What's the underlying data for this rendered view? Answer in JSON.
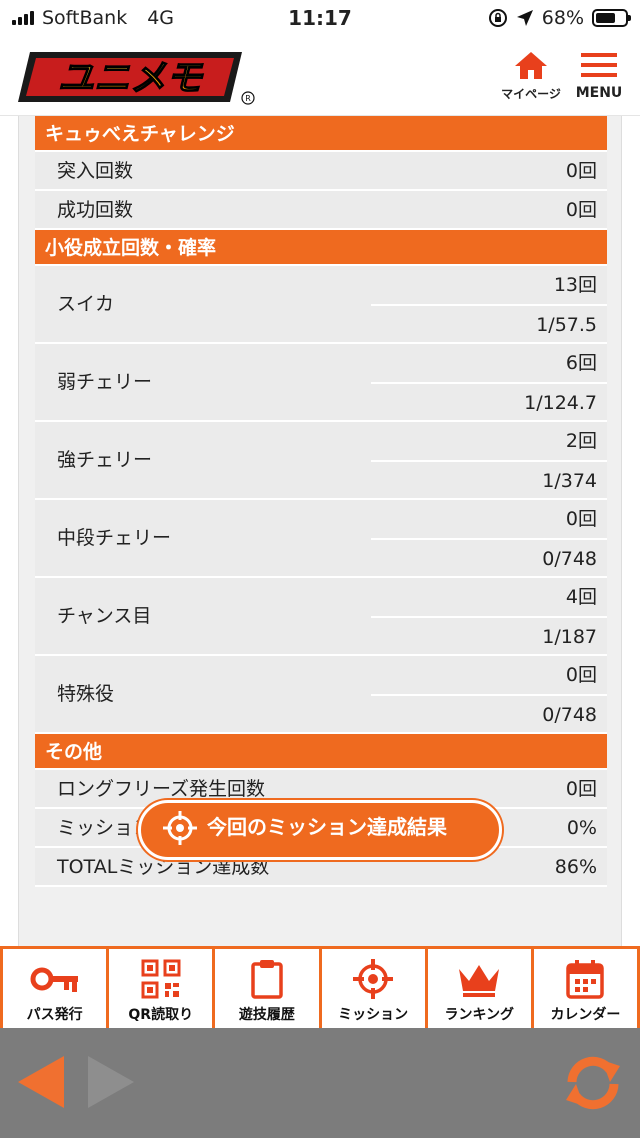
{
  "status_bar": {
    "carrier": "SoftBank",
    "network": "4G",
    "time": "11:17",
    "battery_percent": "68%",
    "battery_level": 0.68
  },
  "header": {
    "logo_text": "ユニメモ",
    "mypage_label": "マイページ",
    "menu_label": "MENU",
    "accent_color": "#ef6a1f"
  },
  "sections": {
    "kyubey": {
      "title": "キュゥべえチャレンジ",
      "rows": [
        {
          "label": "突入回数",
          "value": "0回"
        },
        {
          "label": "成功回数",
          "value": "0回"
        }
      ]
    },
    "koyaku": {
      "title": "小役成立回数・確率",
      "rows": [
        {
          "label": "スイカ",
          "count": "13回",
          "prob": "1/57.5"
        },
        {
          "label": "弱チェリー",
          "count": "6回",
          "prob": "1/124.7"
        },
        {
          "label": "強チェリー",
          "count": "2回",
          "prob": "1/374"
        },
        {
          "label": "中段チェリー",
          "count": "0回",
          "prob": "0/748"
        },
        {
          "label": "チャンス目",
          "count": "4回",
          "prob": "1/187"
        },
        {
          "label": "特殊役",
          "count": "0回",
          "prob": "0/748"
        }
      ]
    },
    "other": {
      "title": "その他",
      "rows": [
        {
          "label": "ロングフリーズ発生回数",
          "value": "0回"
        },
        {
          "label": "ミッション達成率",
          "value": "0%"
        },
        {
          "label": "TOTALミッション達成数",
          "value": "86%"
        }
      ]
    }
  },
  "mission_button_label": "今回のミッション達成結果",
  "tabbar": [
    {
      "label": "パス発行",
      "icon": "key-icon"
    },
    {
      "label": "QR読取り",
      "icon": "qr-icon"
    },
    {
      "label": "遊技履歴",
      "icon": "clipboard-icon"
    },
    {
      "label": "ミッション",
      "icon": "target-icon"
    },
    {
      "label": "ランキング",
      "icon": "crown-icon"
    },
    {
      "label": "カレンダー",
      "icon": "calendar-icon"
    }
  ]
}
